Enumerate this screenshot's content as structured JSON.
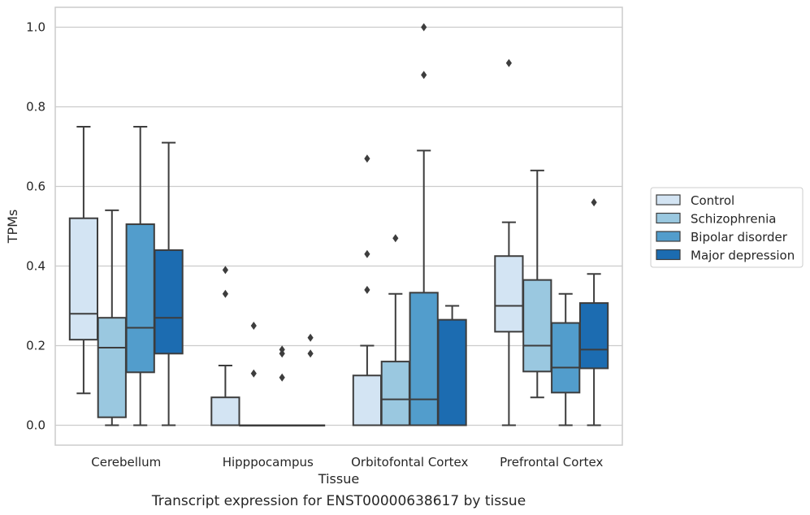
{
  "chart_data": {
    "type": "box",
    "caption": "Transcript expression for ENST00000638617 by tissue",
    "xlabel": "Tissue",
    "ylabel": "TPMs",
    "ylim": [
      -0.05,
      1.05
    ],
    "yticks": [
      "0.0",
      "0.2",
      "0.4",
      "0.6",
      "0.8",
      "1.0"
    ],
    "categories": [
      "Cerebellum",
      "Hipppocampus",
      "Orbitofontal Cortex",
      "Prefrontal Cortex"
    ],
    "grid": "horizontal",
    "legend_position": "right",
    "series": [
      {
        "name": "Control",
        "color": "#d3e4f3",
        "boxes": [
          {
            "whislo": 0.08,
            "q1": 0.215,
            "med": 0.28,
            "q3": 0.52,
            "whishi": 0.75,
            "fliers": []
          },
          {
            "whislo": 0.0,
            "q1": 0.0,
            "med": 0.0,
            "q3": 0.07,
            "whishi": 0.15,
            "fliers": [
              0.33,
              0.39
            ]
          },
          {
            "whislo": 0.0,
            "q1": 0.0,
            "med": 0.0,
            "q3": 0.125,
            "whishi": 0.2,
            "fliers": [
              0.34,
              0.43,
              0.67
            ]
          },
          {
            "whislo": 0.0,
            "q1": 0.235,
            "med": 0.3,
            "q3": 0.425,
            "whishi": 0.51,
            "fliers": [
              0.91
            ]
          }
        ]
      },
      {
        "name": "Schizophrenia",
        "color": "#9ac8e0",
        "boxes": [
          {
            "whislo": 0.0,
            "q1": 0.02,
            "med": 0.195,
            "q3": 0.27,
            "whishi": 0.54,
            "fliers": []
          },
          {
            "whislo": 0.0,
            "q1": 0.0,
            "med": 0.0,
            "q3": 0.0,
            "whishi": 0.0,
            "fliers": [
              0.13,
              0.25
            ]
          },
          {
            "whislo": 0.0,
            "q1": 0.0,
            "med": 0.065,
            "q3": 0.16,
            "whishi": 0.33,
            "fliers": [
              0.47
            ]
          },
          {
            "whislo": 0.07,
            "q1": 0.135,
            "med": 0.2,
            "q3": 0.365,
            "whishi": 0.64,
            "fliers": []
          }
        ]
      },
      {
        "name": "Bipolar disorder",
        "color": "#529dcc",
        "boxes": [
          {
            "whislo": 0.0,
            "q1": 0.133,
            "med": 0.245,
            "q3": 0.505,
            "whishi": 0.75,
            "fliers": []
          },
          {
            "whislo": 0.0,
            "q1": 0.0,
            "med": 0.0,
            "q3": 0.0,
            "whishi": 0.0,
            "fliers": [
              0.12,
              0.18,
              0.19
            ]
          },
          {
            "whislo": 0.0,
            "q1": 0.0,
            "med": 0.065,
            "q3": 0.333,
            "whishi": 0.69,
            "fliers": [
              0.88,
              1.0
            ]
          },
          {
            "whislo": 0.0,
            "q1": 0.082,
            "med": 0.145,
            "q3": 0.257,
            "whishi": 0.33,
            "fliers": []
          }
        ]
      },
      {
        "name": "Major depression",
        "color": "#1c6cb1",
        "boxes": [
          {
            "whislo": 0.0,
            "q1": 0.18,
            "med": 0.27,
            "q3": 0.44,
            "whishi": 0.71,
            "fliers": []
          },
          {
            "whislo": 0.0,
            "q1": 0.0,
            "med": 0.0,
            "q3": 0.0,
            "whishi": 0.0,
            "fliers": [
              0.18,
              0.22
            ]
          },
          {
            "whislo": 0.0,
            "q1": 0.0,
            "med": 0.0,
            "q3": 0.265,
            "whishi": 0.3,
            "fliers": []
          },
          {
            "whislo": 0.0,
            "q1": 0.143,
            "med": 0.19,
            "q3": 0.307,
            "whishi": 0.38,
            "fliers": [
              0.56
            ]
          }
        ]
      }
    ]
  }
}
